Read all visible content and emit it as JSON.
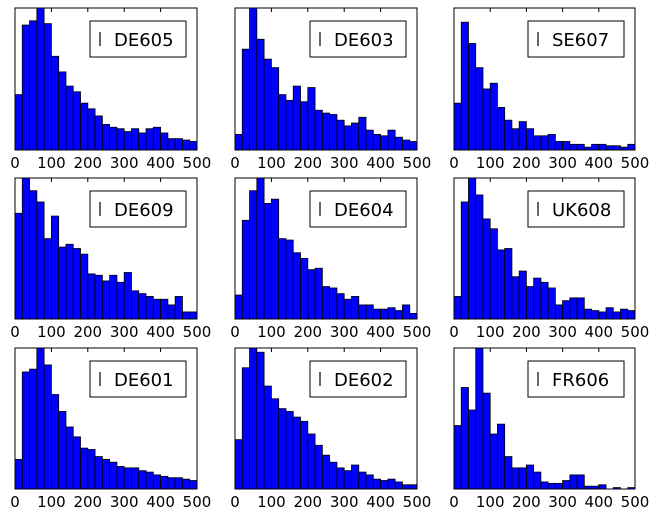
{
  "figure": {
    "background": "#ffffff"
  },
  "chart_data": [
    {
      "type": "bar",
      "legend": "DE605",
      "legend_loc": "top-right",
      "x_ticks": [
        "0",
        "100",
        "200",
        "300",
        "400",
        "500"
      ],
      "xlim": [
        0,
        500
      ],
      "ylim": [
        0,
        1
      ],
      "bin_width": 20,
      "bar_color": "#0000ff",
      "values": [
        0.39,
        0.88,
        0.91,
        1.0,
        0.89,
        0.66,
        0.55,
        0.45,
        0.41,
        0.33,
        0.29,
        0.24,
        0.18,
        0.16,
        0.15,
        0.13,
        0.15,
        0.12,
        0.15,
        0.16,
        0.12,
        0.08,
        0.08,
        0.07,
        0.06
      ]
    },
    {
      "type": "bar",
      "legend": "DE603",
      "legend_loc": "top-right",
      "x_ticks": [
        "0",
        "100",
        "200",
        "300",
        "400",
        "500"
      ],
      "xlim": [
        0,
        500
      ],
      "ylim": [
        0,
        1
      ],
      "bin_width": 20,
      "bar_color": "#0000ff",
      "values": [
        0.11,
        0.71,
        1.0,
        0.78,
        0.64,
        0.58,
        0.39,
        0.35,
        0.45,
        0.34,
        0.44,
        0.28,
        0.26,
        0.25,
        0.21,
        0.17,
        0.19,
        0.23,
        0.14,
        0.11,
        0.1,
        0.14,
        0.09,
        0.07,
        0.06
      ]
    },
    {
      "type": "bar",
      "legend": "SE607",
      "legend_loc": "top-right",
      "x_ticks": [
        "0",
        "100",
        "200",
        "300",
        "400",
        "500"
      ],
      "xlim": [
        0,
        500
      ],
      "ylim": [
        0,
        1
      ],
      "bin_width": 20,
      "bar_color": "#0000ff",
      "values": [
        0.33,
        0.9,
        0.75,
        0.58,
        0.43,
        0.47,
        0.3,
        0.21,
        0.15,
        0.2,
        0.15,
        0.1,
        0.1,
        0.11,
        0.06,
        0.06,
        0.04,
        0.04,
        0.02,
        0.04,
        0.04,
        0.03,
        0.03,
        0.02,
        0.04
      ]
    },
    {
      "type": "bar",
      "legend": "DE609",
      "legend_loc": "top-right",
      "x_ticks": [
        "0",
        "100",
        "200",
        "300",
        "400",
        "500"
      ],
      "xlim": [
        0,
        500
      ],
      "ylim": [
        0,
        1
      ],
      "bin_width": 20,
      "bar_color": "#0000ff",
      "values": [
        0.75,
        1.0,
        0.91,
        0.83,
        0.57,
        0.73,
        0.51,
        0.53,
        0.5,
        0.46,
        0.32,
        0.31,
        0.27,
        0.31,
        0.26,
        0.33,
        0.2,
        0.18,
        0.16,
        0.14,
        0.14,
        0.1,
        0.16,
        0.05,
        0.05
      ]
    },
    {
      "type": "bar",
      "legend": "DE604",
      "legend_loc": "top-right",
      "x_ticks": [
        "0",
        "100",
        "200",
        "300",
        "400",
        "500"
      ],
      "xlim": [
        0,
        500
      ],
      "ylim": [
        0,
        1
      ],
      "bin_width": 20,
      "bar_color": "#0000ff",
      "values": [
        0.17,
        0.7,
        0.91,
        1.0,
        0.82,
        0.85,
        0.57,
        0.56,
        0.47,
        0.43,
        0.35,
        0.36,
        0.23,
        0.22,
        0.18,
        0.14,
        0.16,
        0.1,
        0.1,
        0.07,
        0.07,
        0.08,
        0.06,
        0.1,
        0.04
      ]
    },
    {
      "type": "bar",
      "legend": "UK608",
      "legend_loc": "top-right",
      "x_ticks": [
        "0",
        "100",
        "200",
        "300",
        "400",
        "500"
      ],
      "xlim": [
        0,
        500
      ],
      "ylim": [
        0,
        1
      ],
      "bin_width": 20,
      "bar_color": "#0000ff",
      "values": [
        0.16,
        0.83,
        1.0,
        0.88,
        0.71,
        0.64,
        0.49,
        0.5,
        0.3,
        0.34,
        0.23,
        0.29,
        0.26,
        0.22,
        0.1,
        0.13,
        0.15,
        0.15,
        0.07,
        0.06,
        0.05,
        0.08,
        0.05,
        0.07,
        0.06
      ]
    },
    {
      "type": "bar",
      "legend": "DE601",
      "legend_loc": "top-right",
      "x_ticks": [
        "0",
        "100",
        "200",
        "300",
        "400",
        "500"
      ],
      "xlim": [
        0,
        500
      ],
      "ylim": [
        0,
        1
      ],
      "bin_width": 20,
      "bar_color": "#0000ff",
      "values": [
        0.21,
        0.83,
        0.85,
        1.0,
        0.88,
        0.67,
        0.55,
        0.44,
        0.37,
        0.29,
        0.28,
        0.23,
        0.21,
        0.19,
        0.16,
        0.15,
        0.15,
        0.13,
        0.12,
        0.1,
        0.09,
        0.08,
        0.08,
        0.07,
        0.06
      ]
    },
    {
      "type": "bar",
      "legend": "DE602",
      "legend_loc": "top-right",
      "x_ticks": [
        "0",
        "100",
        "200",
        "300",
        "400",
        "500"
      ],
      "xlim": [
        0,
        500
      ],
      "ylim": [
        0,
        1
      ],
      "bin_width": 20,
      "bar_color": "#0000ff",
      "values": [
        0.35,
        0.86,
        1.0,
        0.97,
        0.73,
        0.64,
        0.57,
        0.55,
        0.51,
        0.48,
        0.39,
        0.31,
        0.24,
        0.19,
        0.15,
        0.13,
        0.17,
        0.12,
        0.1,
        0.07,
        0.06,
        0.07,
        0.05,
        0.03,
        0.03
      ]
    },
    {
      "type": "bar",
      "legend": "FR606",
      "legend_loc": "top-right",
      "x_ticks": [
        "0",
        "100",
        "200",
        "300",
        "400",
        "500"
      ],
      "xlim": [
        0,
        500
      ],
      "ylim": [
        0,
        1
      ],
      "bin_width": 20,
      "bar_color": "#0000ff",
      "values": [
        0.45,
        0.72,
        0.56,
        1.0,
        0.68,
        0.39,
        0.46,
        0.23,
        0.15,
        0.15,
        0.17,
        0.12,
        0.05,
        0.04,
        0.04,
        0.06,
        0.1,
        0.1,
        0.02,
        0.02,
        0.03,
        0.0,
        0.01,
        0.0,
        0.01
      ]
    }
  ]
}
